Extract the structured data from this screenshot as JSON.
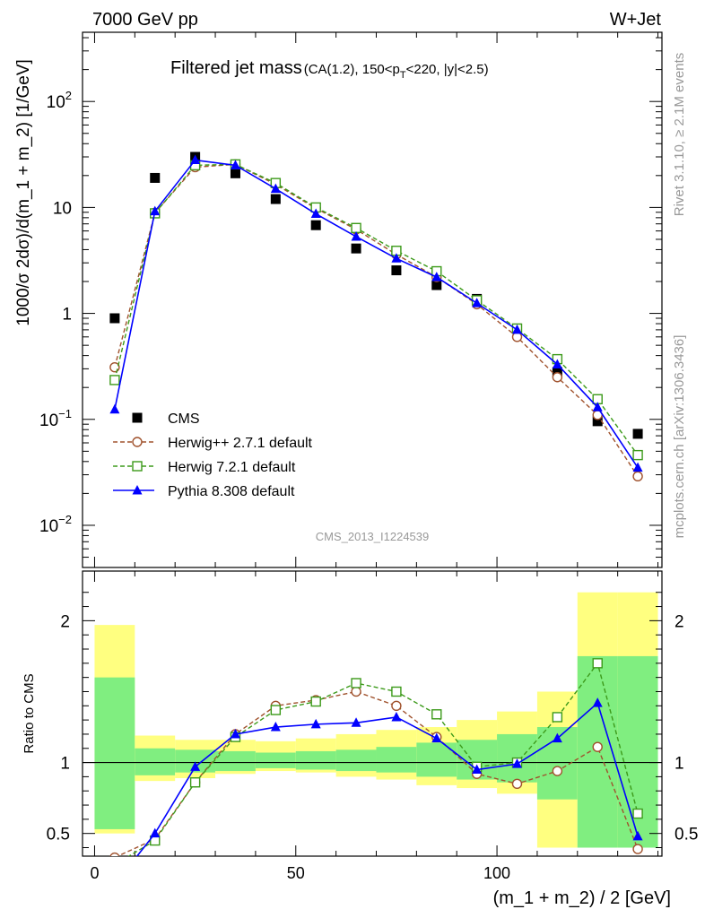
{
  "header": {
    "left": "7000 GeV pp",
    "right": "W+Jet"
  },
  "side_labels": {
    "rivet": "Rivet 3.1.10, ≥ 2.1M events",
    "mcplots": "mcplots.cern.ch [arXiv:1306.3436]"
  },
  "watermark": "CMS_2013_I1224539",
  "colors": {
    "cms": "#000000",
    "herwigpp": "#a0522d",
    "herwig7": "#3c9a1a",
    "pythia": "#0000ff",
    "band_outer": "#ffff80",
    "band_inner": "#80ee80"
  },
  "chart_data": [
    {
      "type": "scatter",
      "title_main": "Filtered jet mass",
      "title_sub": "(CA(1.2), 150<p",
      "title_sub_T": "T",
      "title_sub_tail": "<220, |y|<2.5)",
      "ylabel": "1000/σ 2dσ)/d(m_1 + m_2) [1/GeV]",
      "yscale": "log",
      "ylim": [
        0.004,
        450
      ],
      "xlim": [
        -3,
        141
      ],
      "y_ticks": [
        {
          "value": 0.01,
          "base": "10",
          "exp": "−2"
        },
        {
          "value": 0.1,
          "base": "10",
          "exp": "−1"
        },
        {
          "value": 1,
          "base": "1",
          "exp": ""
        },
        {
          "value": 10,
          "base": "10",
          "exp": ""
        },
        {
          "value": 100,
          "base": "10",
          "exp": "2"
        }
      ],
      "x": [
        5,
        15,
        25,
        35,
        45,
        55,
        65,
        75,
        85,
        95,
        105,
        115,
        125,
        135
      ],
      "legend_position": "lower-left",
      "series": [
        {
          "name": "CMS",
          "key": "cms",
          "marker": "square-filled",
          "line": "none",
          "values": [
            0.9,
            19,
            30,
            21,
            12,
            6.8,
            4.1,
            2.55,
            1.85,
            1.37,
            0.72,
            0.28,
            0.096,
            0.073
          ]
        },
        {
          "name": "Herwig++ 2.7.1 default",
          "key": "herwigpp",
          "marker": "circle-open",
          "line": "dashed",
          "values": [
            0.31,
            8.9,
            24,
            25.5,
            16.5,
            9.8,
            6.2,
            3.6,
            2.2,
            1.22,
            0.6,
            0.25,
            0.11,
            0.029
          ]
        },
        {
          "name": "Herwig 7.2.1 default",
          "key": "herwig7",
          "marker": "square-open",
          "line": "dashed",
          "values": [
            0.235,
            8.8,
            25,
            25.5,
            17,
            10,
            6.4,
            3.9,
            2.5,
            1.33,
            0.72,
            0.37,
            0.155,
            0.046
          ]
        },
        {
          "name": "Pythia 8.308 default",
          "key": "pythia",
          "marker": "triangle-filled",
          "line": "solid",
          "values": [
            0.124,
            9.2,
            28,
            25,
            15,
            8.7,
            5.3,
            3.3,
            2.2,
            1.25,
            0.7,
            0.33,
            0.13,
            0.035
          ]
        }
      ]
    },
    {
      "type": "line",
      "ylabel": "Ratio to CMS",
      "xlabel": "(m_1 + m_2) / 2 [GeV]",
      "ylim": [
        0.34,
        2.35
      ],
      "xlim": [
        -3,
        141
      ],
      "x_ticks": [
        0,
        50,
        100
      ],
      "y_ticks": [
        0.5,
        1,
        2
      ],
      "reference_line": 1,
      "x": [
        5,
        15,
        25,
        35,
        45,
        55,
        65,
        75,
        85,
        95,
        105,
        115,
        125,
        135
      ],
      "bin_edges": [
        0,
        10,
        20,
        30,
        40,
        50,
        60,
        70,
        80,
        90,
        100,
        110,
        120,
        130,
        140
      ],
      "band_outer": [
        [
          0.5,
          1.97
        ],
        [
          0.87,
          1.19
        ],
        [
          0.89,
          1.16
        ],
        [
          0.92,
          1.16
        ],
        [
          0.94,
          1.15
        ],
        [
          0.93,
          1.17
        ],
        [
          0.9,
          1.2
        ],
        [
          0.88,
          1.23
        ],
        [
          0.84,
          1.25
        ],
        [
          0.82,
          1.3
        ],
        [
          0.78,
          1.36
        ],
        [
          0.4,
          1.5
        ],
        [
          0.4,
          2.2
        ],
        [
          0.4,
          2.2
        ]
      ],
      "band_inner": [
        [
          0.53,
          1.6
        ],
        [
          0.91,
          1.1
        ],
        [
          0.93,
          1.09
        ],
        [
          0.94,
          1.08
        ],
        [
          0.96,
          1.07
        ],
        [
          0.95,
          1.08
        ],
        [
          0.94,
          1.09
        ],
        [
          0.93,
          1.11
        ],
        [
          0.9,
          1.14
        ],
        [
          0.88,
          1.16
        ],
        [
          0.86,
          1.2
        ],
        [
          0.74,
          1.25
        ],
        [
          0.4,
          1.75
        ],
        [
          0.4,
          1.75
        ]
      ],
      "series": [
        {
          "name": "Herwig++ 2.7.1 default",
          "key": "herwigpp",
          "marker": "circle-open",
          "line": "dashed",
          "values": [
            0.33,
            0.46,
            0.86,
            1.2,
            1.4,
            1.44,
            1.5,
            1.4,
            1.18,
            0.92,
            0.85,
            0.94,
            1.11,
            0.39
          ]
        },
        {
          "name": "Herwig 7.2.1 default",
          "key": "herwig7",
          "marker": "square-open",
          "line": "dashed",
          "values": [
            0.28,
            0.45,
            0.86,
            1.18,
            1.37,
            1.43,
            1.56,
            1.5,
            1.34,
            0.97,
            1.0,
            1.32,
            1.7,
            0.64
          ]
        },
        {
          "name": "Pythia 8.308 default",
          "key": "pythia",
          "marker": "triangle-filled",
          "line": "solid",
          "values": [
            0.14,
            0.5,
            0.97,
            1.2,
            1.25,
            1.27,
            1.28,
            1.32,
            1.17,
            0.95,
            0.99,
            1.17,
            1.42,
            0.48
          ]
        }
      ]
    }
  ]
}
